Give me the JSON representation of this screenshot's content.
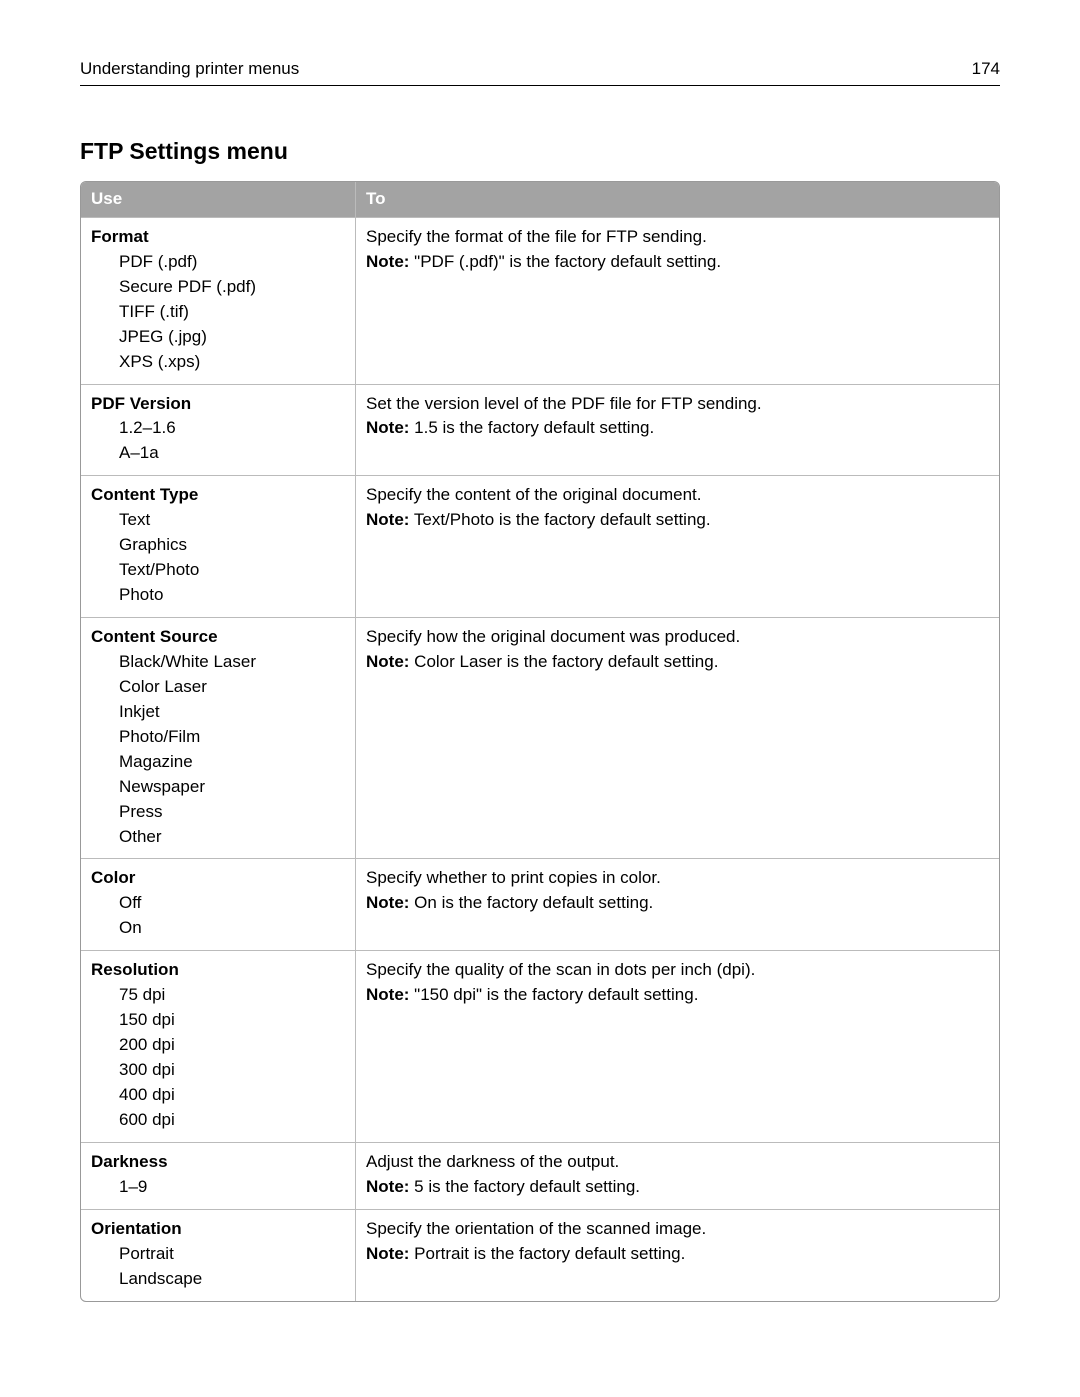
{
  "header": {
    "title": "Understanding printer menus",
    "page_number": "174"
  },
  "section_title": "FTP Settings menu",
  "table": {
    "columns": [
      "Use",
      "To"
    ],
    "rows": [
      {
        "use_title": "Format",
        "use_subs": [
          "PDF (.pdf)",
          "Secure PDF (.pdf)",
          "TIFF (.tif)",
          "JPEG (.jpg)",
          "XPS (.xps)"
        ],
        "to_text": "Specify the format of the file for FTP sending.",
        "note_label": "Note:",
        "note_text": " \"PDF (.pdf)\" is the factory default setting."
      },
      {
        "use_title": "PDF Version",
        "use_subs": [
          "1.2–1.6",
          "A–1a"
        ],
        "to_text": "Set the version level of the PDF file for FTP sending.",
        "note_label": "Note:",
        "note_text": " 1.5 is the factory default setting."
      },
      {
        "use_title": "Content Type",
        "use_subs": [
          "Text",
          "Graphics",
          "Text/Photo",
          "Photo"
        ],
        "to_text": "Specify the content of the original document.",
        "note_label": "Note:",
        "note_text": " Text/Photo is the factory default setting."
      },
      {
        "use_title": "Content Source",
        "use_subs": [
          "Black/White Laser",
          "Color Laser",
          "Inkjet",
          "Photo/Film",
          "Magazine",
          "Newspaper",
          "Press",
          "Other"
        ],
        "to_text": "Specify how the original document was produced.",
        "note_label": "Note:",
        "note_text": " Color Laser is the factory default setting."
      },
      {
        "use_title": "Color",
        "use_subs": [
          "Off",
          "On"
        ],
        "to_text": "Specify whether to print copies in color.",
        "note_label": "Note:",
        "note_text": " On is the factory default setting."
      },
      {
        "use_title": "Resolution",
        "use_subs": [
          "75 dpi",
          "150 dpi",
          "200 dpi",
          "300 dpi",
          "400 dpi",
          "600 dpi"
        ],
        "to_text": "Specify the quality of the scan in dots per inch (dpi).",
        "note_label": "Note:",
        "note_text": " \"150 dpi\" is the factory default setting."
      },
      {
        "use_title": "Darkness",
        "use_subs": [
          "1–9"
        ],
        "to_text": "Adjust the darkness of the output.",
        "note_label": "Note:",
        "note_text": " 5 is the factory default setting."
      },
      {
        "use_title": "Orientation",
        "use_subs": [
          "Portrait",
          "Landscape"
        ],
        "to_text": "Specify the orientation of the scanned image.",
        "note_label": "Note:",
        "note_text": " Portrait is the factory default setting."
      }
    ]
  }
}
